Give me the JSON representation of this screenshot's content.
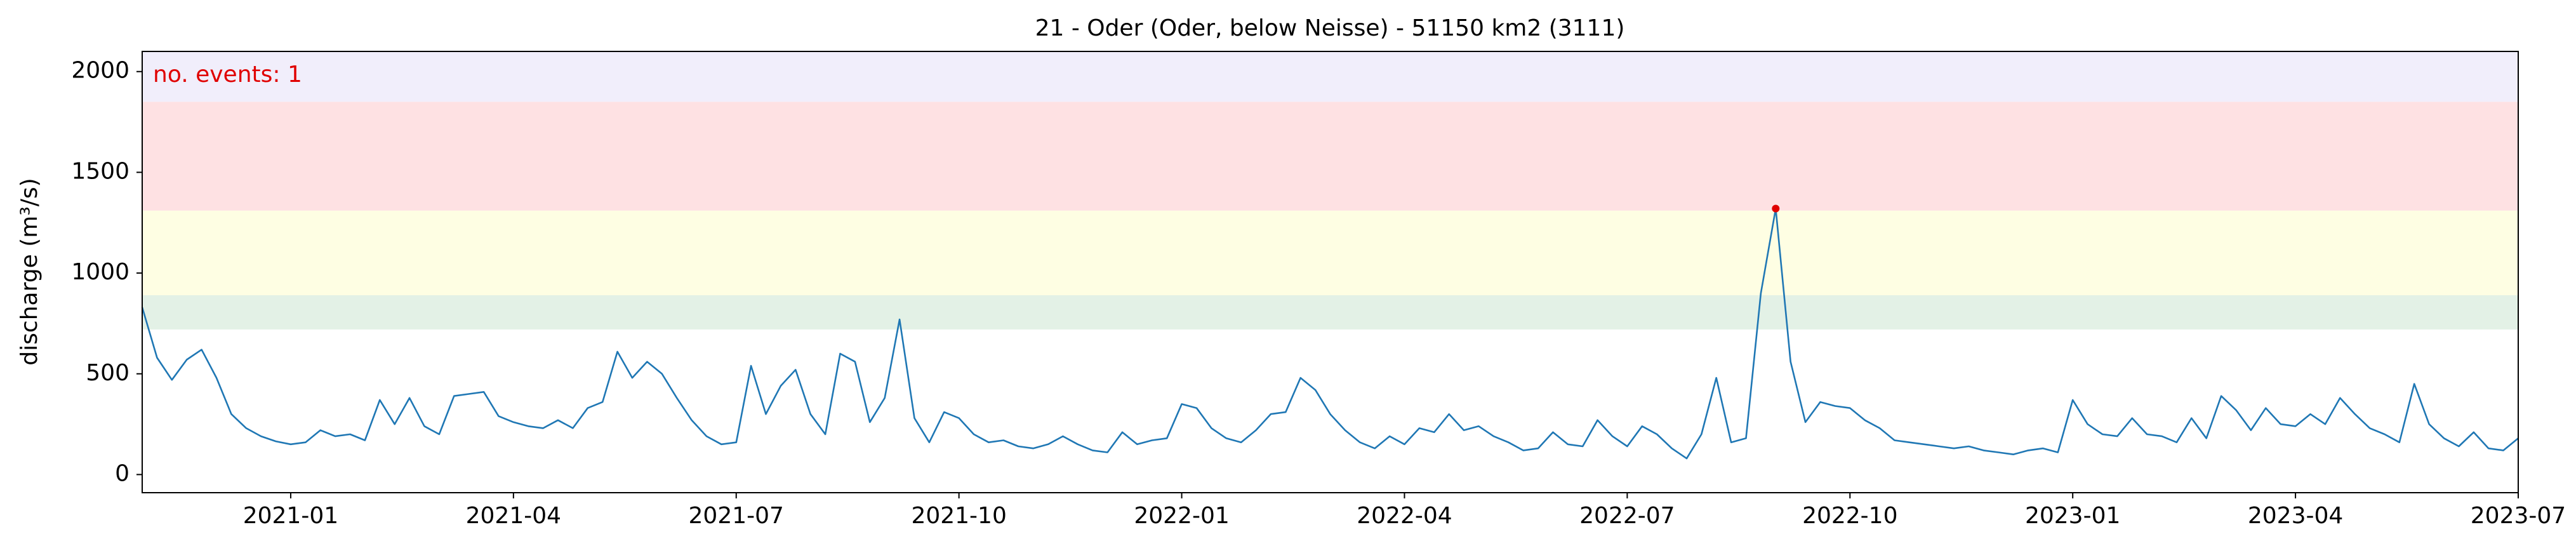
{
  "chart_data": {
    "type": "line",
    "title": "21 - Oder (Oder, below Neisse) - 51150 km2 (3111)",
    "y_label": "discharge (m³/s)",
    "annotation": "no. events: 1",
    "annotation_color": "#e00000",
    "xlim": [
      "2020-11",
      "2023-07"
    ],
    "xticks": [
      "2021-01",
      "2021-04",
      "2021-07",
      "2021-10",
      "2022-01",
      "2022-04",
      "2022-07",
      "2022-10",
      "2023-01",
      "2023-04",
      "2023-07"
    ],
    "ylim": [
      -90,
      2100
    ],
    "yticks": [
      0,
      500,
      1000,
      1500,
      2000
    ],
    "bands": [
      {
        "from": 720,
        "to": 890,
        "color": "#e3f1e6"
      },
      {
        "from": 890,
        "to": 1310,
        "color": "#fefee3"
      },
      {
        "from": 1310,
        "to": 1850,
        "color": "#fee1e3"
      },
      {
        "from": 1850,
        "to": 2100,
        "color": "#f1eefb"
      }
    ],
    "series": [
      {
        "name": "discharge",
        "color": "#1f77b4",
        "values": [
          830,
          580,
          470,
          570,
          620,
          480,
          300,
          230,
          190,
          165,
          150,
          160,
          220,
          190,
          200,
          170,
          370,
          250,
          380,
          240,
          200,
          390,
          400,
          410,
          290,
          260,
          240,
          230,
          270,
          230,
          330,
          360,
          610,
          480,
          560,
          500,
          380,
          270,
          190,
          150,
          160,
          540,
          300,
          440,
          520,
          300,
          200,
          600,
          560,
          260,
          380,
          770,
          280,
          160,
          310,
          280,
          200,
          160,
          170,
          140,
          130,
          150,
          190,
          150,
          120,
          110,
          210,
          150,
          170,
          180,
          350,
          330,
          230,
          180,
          160,
          220,
          300,
          310,
          480,
          420,
          300,
          220,
          160,
          130,
          190,
          150,
          230,
          210,
          300,
          220,
          240,
          190,
          160,
          120,
          130,
          210,
          150,
          140,
          270,
          190,
          140,
          240,
          200,
          130,
          80,
          200,
          480,
          160,
          180,
          900,
          1320,
          560,
          260,
          360,
          340,
          330,
          270,
          230,
          170,
          160,
          150,
          140,
          130,
          140,
          120,
          110,
          100,
          120,
          130,
          110,
          370,
          250,
          200,
          190,
          280,
          200,
          190,
          160,
          280,
          180,
          390,
          320,
          220,
          330,
          250,
          240,
          300,
          250,
          380,
          300,
          230,
          200,
          160,
          450,
          250,
          180,
          140,
          210,
          130,
          120,
          180
        ]
      },
      {
        "name": "events",
        "color": "#e00000",
        "marker": "dot",
        "values": [
          null,
          null,
          null,
          null,
          null,
          null,
          null,
          null,
          null,
          null,
          null,
          null,
          null,
          null,
          null,
          null,
          null,
          null,
          null,
          null,
          null,
          null,
          null,
          null,
          null,
          null,
          null,
          null,
          null,
          null,
          null,
          null,
          null,
          null,
          null,
          null,
          null,
          null,
          null,
          null,
          null,
          null,
          null,
          null,
          null,
          null,
          null,
          null,
          null,
          null,
          null,
          null,
          null,
          null,
          null,
          null,
          null,
          null,
          null,
          null,
          null,
          null,
          null,
          null,
          null,
          null,
          null,
          null,
          null,
          null,
          null,
          null,
          null,
          null,
          null,
          null,
          null,
          null,
          null,
          null,
          null,
          null,
          null,
          null,
          null,
          null,
          null,
          null,
          null,
          null,
          null,
          null,
          null,
          null,
          null,
          null,
          null,
          null,
          null,
          null,
          null,
          null,
          null,
          null,
          null,
          null,
          null,
          null,
          null,
          null,
          1320,
          null,
          null,
          null,
          null,
          null,
          null,
          null,
          null,
          null,
          null,
          null,
          null,
          null,
          null,
          null,
          null,
          null,
          null,
          null,
          null,
          null,
          null,
          null,
          null,
          null,
          null,
          null,
          null,
          null,
          null,
          null,
          null,
          null,
          null,
          null,
          null,
          null,
          null,
          null,
          null,
          null,
          null,
          null,
          null,
          null,
          null,
          null,
          null,
          null,
          null
        ]
      }
    ]
  }
}
